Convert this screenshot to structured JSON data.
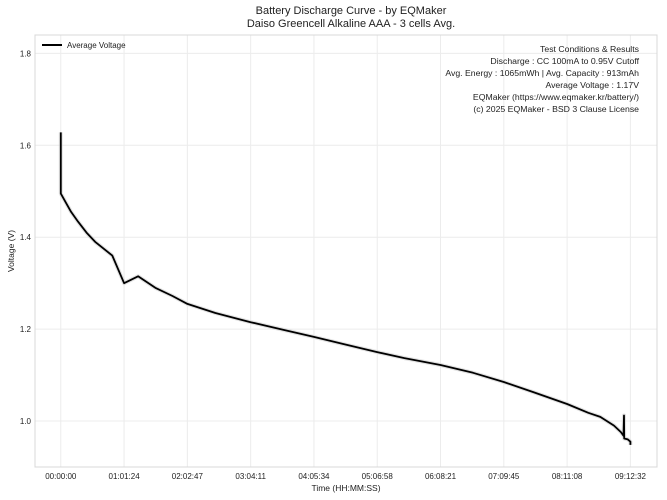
{
  "chart_data": {
    "type": "line",
    "title": "Battery Discharge Curve - by EQMaker",
    "subtitle": "Daiso Greencell Alkaline AAA - 3 cells Avg.",
    "xlabel": "Time (HH:MM:SS)",
    "ylabel": "Voltage (V)",
    "xlim": [
      -1500,
      34700
    ],
    "ylim": [
      0.9,
      1.84
    ],
    "grid": true,
    "legend_position": "top-left",
    "x_ticks": [
      {
        "value": 0,
        "label": "00:00:00"
      },
      {
        "value": 3684,
        "label": "01:01:24"
      },
      {
        "value": 7367,
        "label": "02:02:47"
      },
      {
        "value": 11051,
        "label": "03:04:11"
      },
      {
        "value": 14734,
        "label": "04:05:34"
      },
      {
        "value": 18418,
        "label": "05:06:58"
      },
      {
        "value": 22101,
        "label": "06:08:21"
      },
      {
        "value": 25785,
        "label": "07:09:45"
      },
      {
        "value": 29468,
        "label": "08:11:08"
      },
      {
        "value": 33152,
        "label": "09:12:32"
      }
    ],
    "y_ticks": [
      {
        "value": 1.0,
        "label": "1.0"
      },
      {
        "value": 1.2,
        "label": "1.2"
      },
      {
        "value": 1.4,
        "label": "1.4"
      },
      {
        "value": 1.6,
        "label": "1.6"
      },
      {
        "value": 1.8,
        "label": "1.8"
      }
    ],
    "series": [
      {
        "name": "Average Voltage",
        "color": "#000000",
        "points": [
          [
            0,
            1.628
          ],
          [
            0,
            1.495
          ],
          [
            300,
            1.475
          ],
          [
            600,
            1.455
          ],
          [
            1000,
            1.434
          ],
          [
            1500,
            1.41
          ],
          [
            2000,
            1.39
          ],
          [
            2500,
            1.375
          ],
          [
            3000,
            1.36
          ],
          [
            3684,
            1.3
          ],
          [
            4500,
            1.315
          ],
          [
            5500,
            1.29
          ],
          [
            6500,
            1.272
          ],
          [
            7367,
            1.255
          ],
          [
            9000,
            1.235
          ],
          [
            11051,
            1.215
          ],
          [
            13000,
            1.198
          ],
          [
            14734,
            1.183
          ],
          [
            16500,
            1.167
          ],
          [
            18418,
            1.15
          ],
          [
            20000,
            1.137
          ],
          [
            22101,
            1.122
          ],
          [
            24000,
            1.105
          ],
          [
            25785,
            1.085
          ],
          [
            27500,
            1.063
          ],
          [
            29468,
            1.037
          ],
          [
            30700,
            1.018
          ],
          [
            31400,
            1.009
          ],
          [
            32200,
            0.99
          ],
          [
            32600,
            0.976
          ],
          [
            32750,
            0.968
          ],
          [
            32780,
            1.012
          ],
          [
            32790,
            0.962
          ],
          [
            33000,
            0.96
          ],
          [
            33152,
            0.955
          ],
          [
            33152,
            0.948
          ]
        ]
      }
    ],
    "annotation": {
      "lines": [
        "Test Conditions & Results",
        "Discharge : CC 100mA to 0.95V Cutoff",
        "Avg. Energy : 1065mWh | Avg. Capacity : 913mAh",
        "Average Voltage : 1.17V",
        "EQMaker (https://www.eqmaker.kr/battery/)",
        "(c) 2025 EQMaker - BSD 3 Clause License"
      ]
    }
  }
}
